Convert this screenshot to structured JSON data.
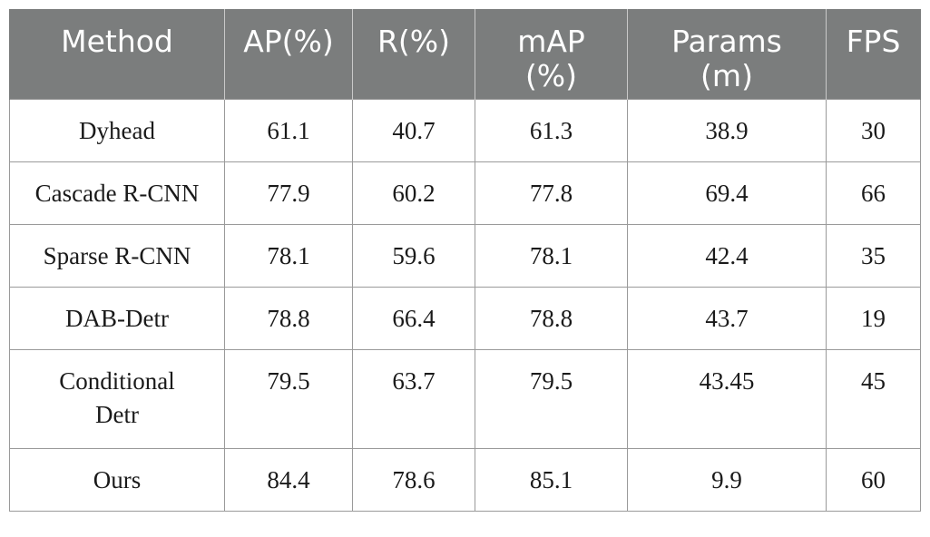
{
  "table": {
    "headers": {
      "method": "Method",
      "ap": "AP(%)",
      "r": "R(%)",
      "map_line1": "mAP",
      "map_line2": "(%)",
      "params_line1": "Params",
      "params_line2": "(m)",
      "fps": "FPS"
    },
    "rows": [
      {
        "method_line1": "Dyhead",
        "method_line2": "",
        "ap": "61.1",
        "r": "40.7",
        "map": "61.3",
        "params": "38.9",
        "fps": "30"
      },
      {
        "method_line1": "Cascade R-CNN",
        "method_line2": "",
        "ap": "77.9",
        "r": "60.2",
        "map": "77.8",
        "params": "69.4",
        "fps": "66"
      },
      {
        "method_line1": "Sparse R-CNN",
        "method_line2": "",
        "ap": "78.1",
        "r": "59.6",
        "map": "78.1",
        "params": "42.4",
        "fps": "35"
      },
      {
        "method_line1": "DAB-Detr",
        "method_line2": "",
        "ap": "78.8",
        "r": "66.4",
        "map": "78.8",
        "params": "43.7",
        "fps": "19"
      },
      {
        "method_line1": "Conditional",
        "method_line2": "Detr",
        "ap": "79.5",
        "r": "63.7",
        "map": "79.5",
        "params": "43.45",
        "fps": "45"
      },
      {
        "method_line1": "Ours",
        "method_line2": "",
        "ap": "84.4",
        "r": "78.6",
        "map": "85.1",
        "params": "9.9",
        "fps": "60"
      }
    ]
  }
}
